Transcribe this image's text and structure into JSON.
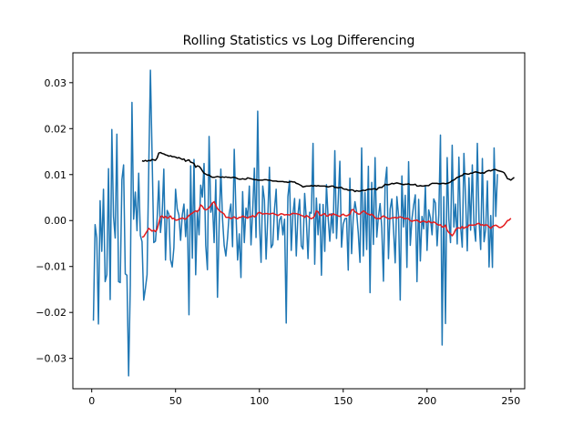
{
  "chart_data": {
    "type": "line",
    "title": "Rolling Statistics vs Log Differencing",
    "xlabel": "",
    "ylabel": "",
    "xlim": [
      -11.25,
      258.25
    ],
    "ylim": [
      -0.0366,
      0.0365
    ],
    "x_ticks": [
      {
        "value": 0,
        "label": "0"
      },
      {
        "value": 50,
        "label": "50"
      },
      {
        "value": 100,
        "label": "100"
      },
      {
        "value": 150,
        "label": "150"
      },
      {
        "value": 200,
        "label": "200"
      },
      {
        "value": 250,
        "label": "250"
      }
    ],
    "y_ticks": [
      {
        "value": -0.03,
        "label": "−0.03"
      },
      {
        "value": -0.02,
        "label": "−0.02"
      },
      {
        "value": -0.01,
        "label": "−0.01"
      },
      {
        "value": 0.0,
        "label": "0.00"
      },
      {
        "value": 0.01,
        "label": "0.01"
      },
      {
        "value": 0.02,
        "label": "0.02"
      },
      {
        "value": 0.03,
        "label": "0.03"
      }
    ],
    "grid": false,
    "legend": "none",
    "series": [
      {
        "color": "#1f77b4",
        "x_start": 1,
        "values": [
          -0.0218,
          -0.0009,
          -0.0038,
          -0.0225,
          0.0043,
          -0.0067,
          0.0068,
          -0.0133,
          -0.0118,
          0.0113,
          -0.0172,
          0.0198,
          0.0008,
          -0.0038,
          0.0188,
          -0.0133,
          -0.0135,
          0.0089,
          0.0121,
          -0.0116,
          -0.0119,
          -0.0338,
          -0.0141,
          0.0257,
          0.0003,
          0.0062,
          -0.0022,
          0.0103,
          -0.0032,
          -0.0046,
          -0.0173,
          -0.0148,
          -0.0118,
          0.0112,
          0.0327,
          0.0143,
          -0.0048,
          -0.0045,
          0.0003,
          0.0086,
          -0.0026,
          0.0014,
          0.0112,
          -0.0086,
          0.0022,
          0.0014,
          -0.0085,
          -0.0101,
          -0.0059,
          0.0068,
          0.0025,
          0.0012,
          -0.0043,
          0.0012,
          0.0036,
          -0.0035,
          0.0024,
          -0.0205,
          0.0119,
          -0.0082,
          0.0133,
          -0.0118,
          0.0021,
          -0.0031,
          0.0077,
          0.0051,
          0.0124,
          -0.0054,
          -0.0107,
          0.0183,
          0.0018,
          0.0039,
          -0.0048,
          0.0089,
          -0.0167,
          -0.0011,
          0.0112,
          0.0004,
          -0.0054,
          -0.0077,
          -0.0038,
          0.0015,
          0.0036,
          -0.0057,
          0.0155,
          0.0021,
          -0.0086,
          -0.0029,
          -0.0124,
          0.0063,
          -0.0048,
          0.0027,
          0.0006,
          0.0075,
          -0.0053,
          0.0022,
          0.0114,
          -0.0037,
          0.0238,
          -0.0004,
          -0.0091,
          0.0075,
          0.0045,
          -0.0084,
          0.0006,
          0.0116,
          -0.0059,
          -0.0052,
          0.0024,
          0.0068,
          -0.0042,
          0.0001,
          0.0009,
          -0.0031,
          0.0003,
          -0.0223,
          0.0052,
          0.0087,
          -0.0065,
          0.0014,
          0.0048,
          -0.0077,
          0.0013,
          0.0046,
          -0.0055,
          -0.0062,
          0.0059,
          0.0003,
          -0.0083,
          0.0018,
          0.0016,
          0.0168,
          -0.0095,
          0.0049,
          -0.0031,
          0.0036,
          -0.0119,
          0.0035,
          -0.0067,
          0.0078,
          0.0006,
          -0.0045,
          0.0015,
          -0.0027,
          0.0152,
          -0.0039,
          0.0041,
          0.0129,
          -0.0058,
          -0.0008,
          0.0004,
          0.0005,
          -0.0108,
          0.0092,
          -0.0072,
          0.0008,
          0.0041,
          0.0018,
          -0.0028,
          -0.0091,
          0.0158,
          -0.0077,
          0.0061,
          -0.0063,
          0.0118,
          -0.0157,
          0.0083,
          -0.0052,
          0.0137,
          -0.0036,
          0.0009,
          0.0037,
          -0.0016,
          -0.0132,
          0.0081,
          0.0116,
          -0.0083,
          0.0025,
          0.0047,
          -0.0019,
          -0.0092,
          0.0052,
          0.0011,
          -0.0173,
          0.0097,
          -0.0014,
          0.0055,
          -0.0102,
          0.0128,
          -0.0054,
          0.0004,
          0.0033,
          0.0056,
          -0.0133,
          0.0046,
          -0.0088,
          0.0009,
          -0.0018,
          0.0075,
          -0.0065,
          0.0023,
          0.0006,
          -0.0031,
          0.0047,
          0.0038,
          -0.0055,
          0.0012,
          0.0186,
          -0.0271,
          0.0052,
          -0.0224,
          0.0137,
          0.0003,
          -0.0048,
          0.0164,
          -0.0014,
          0.0036,
          -0.0051,
          0.0138,
          -0.0011,
          -0.0058,
          0.0146,
          0.0048,
          -0.0066,
          0.0093,
          -0.0021,
          0.0121,
          -0.0011,
          -0.0045,
          0.0168,
          0.0001,
          -0.0063,
          0.0135,
          -0.0046,
          -0.0018,
          0.0086,
          -0.0101,
          0.0011,
          -0.0102,
          0.0158,
          0.0009,
          0.0101
        ]
      },
      {
        "color": "#000000",
        "x_start": 30,
        "values": [
          0.013,
          0.0129,
          0.0131,
          0.0129,
          0.0131,
          0.013,
          0.0133,
          0.0132,
          0.0131,
          0.0136,
          0.0147,
          0.0148,
          0.0146,
          0.0145,
          0.0143,
          0.0142,
          0.014,
          0.0141,
          0.0139,
          0.0139,
          0.0138,
          0.0136,
          0.0137,
          0.0135,
          0.0133,
          0.0134,
          0.0129,
          0.0131,
          0.0132,
          0.0127,
          0.0126,
          0.0124,
          0.0116,
          0.0119,
          0.0118,
          0.0114,
          0.0108,
          0.0103,
          0.0101,
          0.0099,
          0.0099,
          0.0096,
          0.0094,
          0.0094,
          0.0095,
          0.0096,
          0.0095,
          0.0094,
          0.0095,
          0.0094,
          0.0095,
          0.0094,
          0.0094,
          0.0093,
          0.0094,
          0.0094,
          0.0093,
          0.0091,
          0.009,
          0.009,
          0.0091,
          0.009,
          0.009,
          0.0093,
          0.0092,
          0.0091,
          0.009,
          0.0089,
          0.0089,
          0.0088,
          0.0088,
          0.0088,
          0.0088,
          0.0089,
          0.0089,
          0.0088,
          0.0088,
          0.0087,
          0.0086,
          0.0086,
          0.0086,
          0.0085,
          0.0085,
          0.0085,
          0.0085,
          0.0084,
          0.0084,
          0.0083,
          0.0084,
          0.0085,
          0.0084,
          0.0084,
          0.0081,
          0.008,
          0.0078,
          0.0076,
          0.0073,
          0.0074,
          0.0075,
          0.0075,
          0.0075,
          0.0076,
          0.0075,
          0.0076,
          0.0075,
          0.0076,
          0.0075,
          0.0075,
          0.0075,
          0.0075,
          0.0074,
          0.0073,
          0.0074,
          0.0075,
          0.0075,
          0.0072,
          0.0072,
          0.0071,
          0.0072,
          0.0072,
          0.0069,
          0.0068,
          0.0068,
          0.0066,
          0.0066,
          0.0067,
          0.0066,
          0.0063,
          0.0065,
          0.0064,
          0.0064,
          0.0065,
          0.0066,
          0.0065,
          0.0067,
          0.0068,
          0.0068,
          0.0068,
          0.0069,
          0.0069,
          0.0067,
          0.0071,
          0.0072,
          0.0072,
          0.0075,
          0.0079,
          0.0078,
          0.0078,
          0.0079,
          0.0081,
          0.008,
          0.0081,
          0.0082,
          0.0081,
          0.008,
          0.0079,
          0.0078,
          0.0079,
          0.0079,
          0.008,
          0.0078,
          0.0078,
          0.0078,
          0.0079,
          0.0075,
          0.0075,
          0.0076,
          0.0075,
          0.0075,
          0.0076,
          0.0076,
          0.0076,
          0.0079,
          0.0081,
          0.0081,
          0.0081,
          0.0081,
          0.008,
          0.008,
          0.0081,
          0.0081,
          0.008,
          0.0081,
          0.0082,
          0.0084,
          0.0087,
          0.0088,
          0.0091,
          0.0094,
          0.0095,
          0.0097,
          0.0098,
          0.0102,
          0.0102,
          0.0101,
          0.0101,
          0.0103,
          0.0103,
          0.0105,
          0.0106,
          0.0105,
          0.0104,
          0.0103,
          0.0104,
          0.0103,
          0.0106,
          0.0108,
          0.0109,
          0.0108,
          0.011,
          0.0111,
          0.0111,
          0.0109,
          0.0108,
          0.0107,
          0.0106,
          0.0104,
          0.0098,
          0.0091,
          0.009,
          0.0088,
          0.0091,
          0.0094
        ]
      },
      {
        "color": "#e41a1c",
        "x_start": 30,
        "values": [
          -0.0036,
          -0.0035,
          -0.0029,
          -0.0023,
          -0.0017,
          -0.002,
          -0.0023,
          -0.0021,
          -0.0024,
          -0.0019,
          -0.0005,
          0.0008,
          0.001,
          0.0006,
          0.0009,
          0.0005,
          0.0007,
          0.001,
          0.0004,
          0.0005,
          0.0001,
          0.0001,
          0.0003,
          0.0004,
          0.0006,
          0.0004,
          0.0003,
          0.0007,
          0.0011,
          0.0014,
          0.0016,
          0.0019,
          0.0021,
          0.0019,
          0.0024,
          0.0034,
          0.0031,
          0.0025,
          0.0023,
          0.0025,
          0.0028,
          0.0033,
          0.0038,
          0.0041,
          0.0033,
          0.0026,
          0.0022,
          0.0019,
          0.0017,
          0.0014,
          0.0007,
          0.0007,
          0.0007,
          0.0004,
          0.0006,
          0.0008,
          0.0005,
          0.0004,
          0.0007,
          0.0007,
          0.001,
          0.0008,
          0.0007,
          0.0005,
          0.0008,
          0.0008,
          0.0011,
          0.0008,
          0.001,
          0.0016,
          0.0018,
          0.0016,
          0.0014,
          0.0015,
          0.0015,
          0.0015,
          0.0014,
          0.0015,
          0.0016,
          0.0014,
          0.0013,
          0.0011,
          0.0013,
          0.0015,
          0.0014,
          0.0012,
          0.0013,
          0.0013,
          0.0012,
          0.0014,
          0.0016,
          0.0015,
          0.0015,
          0.0014,
          0.0013,
          0.0011,
          0.001,
          0.0007,
          0.0011,
          0.0009,
          0.0006,
          0.0004,
          0.0006,
          0.001,
          0.0021,
          0.0019,
          0.0012,
          0.0011,
          0.0014,
          0.0015,
          0.001,
          0.001,
          0.0014,
          0.0011,
          0.0015,
          0.0013,
          0.0012,
          0.001,
          0.0009,
          0.0012,
          0.0014,
          0.0011,
          0.001,
          0.0012,
          0.0014,
          0.0023,
          0.0024,
          0.0019,
          0.0017,
          0.0014,
          0.0014,
          0.0018,
          0.0021,
          0.0019,
          0.0015,
          0.0014,
          0.0012,
          0.0014,
          0.0011,
          0.0006,
          0.0004,
          0.0005,
          0.0004,
          0.0008,
          0.001,
          0.0008,
          0.0006,
          0.0004,
          0.0004,
          0.0006,
          0.0006,
          0.0007,
          0.0005,
          0.0007,
          0.0008,
          0.0007,
          0.0005,
          0.0004,
          0.0005,
          0.0004,
          0.0,
          -0.0002,
          0.0,
          0.0,
          0.0001,
          -0.0002,
          -0.0004,
          -0.0002,
          -0.0001,
          -0.0003,
          -0.0004,
          -0.0001,
          -0.0004,
          -0.0005,
          -0.0003,
          -0.0005,
          -0.0008,
          -0.001,
          -0.0009,
          -0.0014,
          -0.0014,
          -0.001,
          -0.0021,
          -0.0026,
          -0.0029,
          -0.0033,
          -0.0028,
          -0.002,
          -0.0016,
          -0.0016,
          -0.0017,
          -0.0013,
          -0.0017,
          -0.0014,
          -0.0015,
          -0.001,
          -0.001,
          -0.001,
          -0.001,
          -0.0009,
          -0.0007,
          -0.0006,
          -0.001,
          -0.0009,
          -0.0011,
          -0.0009,
          -0.001,
          -0.0014,
          -0.0017,
          -0.0013,
          -0.0011,
          -0.001,
          -0.0012,
          -0.0015,
          -0.0015,
          -0.0013,
          -0.001,
          -0.0005,
          0.0,
          0.0001,
          0.0005
        ]
      }
    ]
  }
}
